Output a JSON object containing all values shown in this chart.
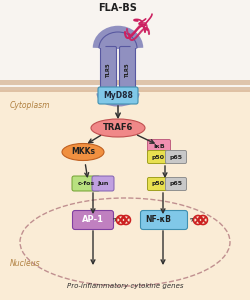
{
  "title": "FLA-BS",
  "bg_top": "#f8f4f0",
  "bg_cyto": "#faecd6",
  "membrane_color": "#d4b090",
  "nucleus_dash_color": "#c09090",
  "cytoplasm_label": "Cytoplasm",
  "nucleus_label": "Nucleus",
  "gene_label": "Pro-inflammatory cytokine genes",
  "tlr5_color": "#9090c0",
  "tlr5_edge": "#5858a0",
  "myd88_color": "#80c8e8",
  "myd88_edge": "#4090b0",
  "traf6_color": "#f08888",
  "traf6_edge": "#c05050",
  "mkks_color": "#f09040",
  "mkks_edge": "#c06020",
  "cfos_color": "#b8e080",
  "cfos_edge": "#70a030",
  "jun_color": "#c0a0e0",
  "jun_edge": "#8060b0",
  "ikb_color": "#f090b0",
  "ikb_edge": "#c06080",
  "p50_color": "#e8e050",
  "p50_edge": "#a0a020",
  "p65_color": "#c8c8c8",
  "p65_edge": "#909090",
  "ap1_color": "#c080c0",
  "ap1_edge": "#8040a0",
  "nfkb_color": "#80c8e8",
  "nfkb_edge": "#4090b0",
  "dna_color": "#cc2020",
  "fla_color": "#cc2060",
  "arrow_color": "#303030",
  "text_dark": "#202020",
  "text_label": "#b08040"
}
